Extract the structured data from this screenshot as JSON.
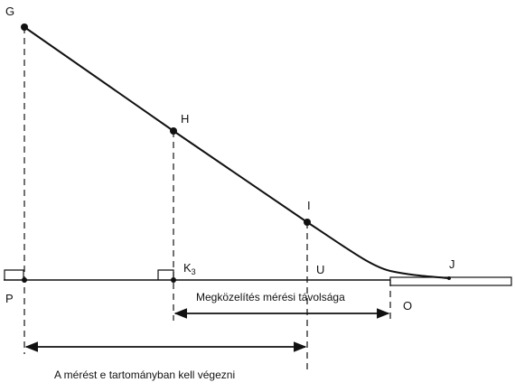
{
  "diagram": {
    "points": {
      "G": "G",
      "H": "H",
      "I": "I",
      "J": "J",
      "P": "P",
      "K": "K",
      "K_sub": "3",
      "U": "U",
      "O": "O"
    },
    "approach_distance_label": "Megközelítés mérési távolsága",
    "measurement_range_label": "A mérést e tartományban kell végezni"
  },
  "colors": {
    "ink": "#111111",
    "background": "#ffffff"
  }
}
